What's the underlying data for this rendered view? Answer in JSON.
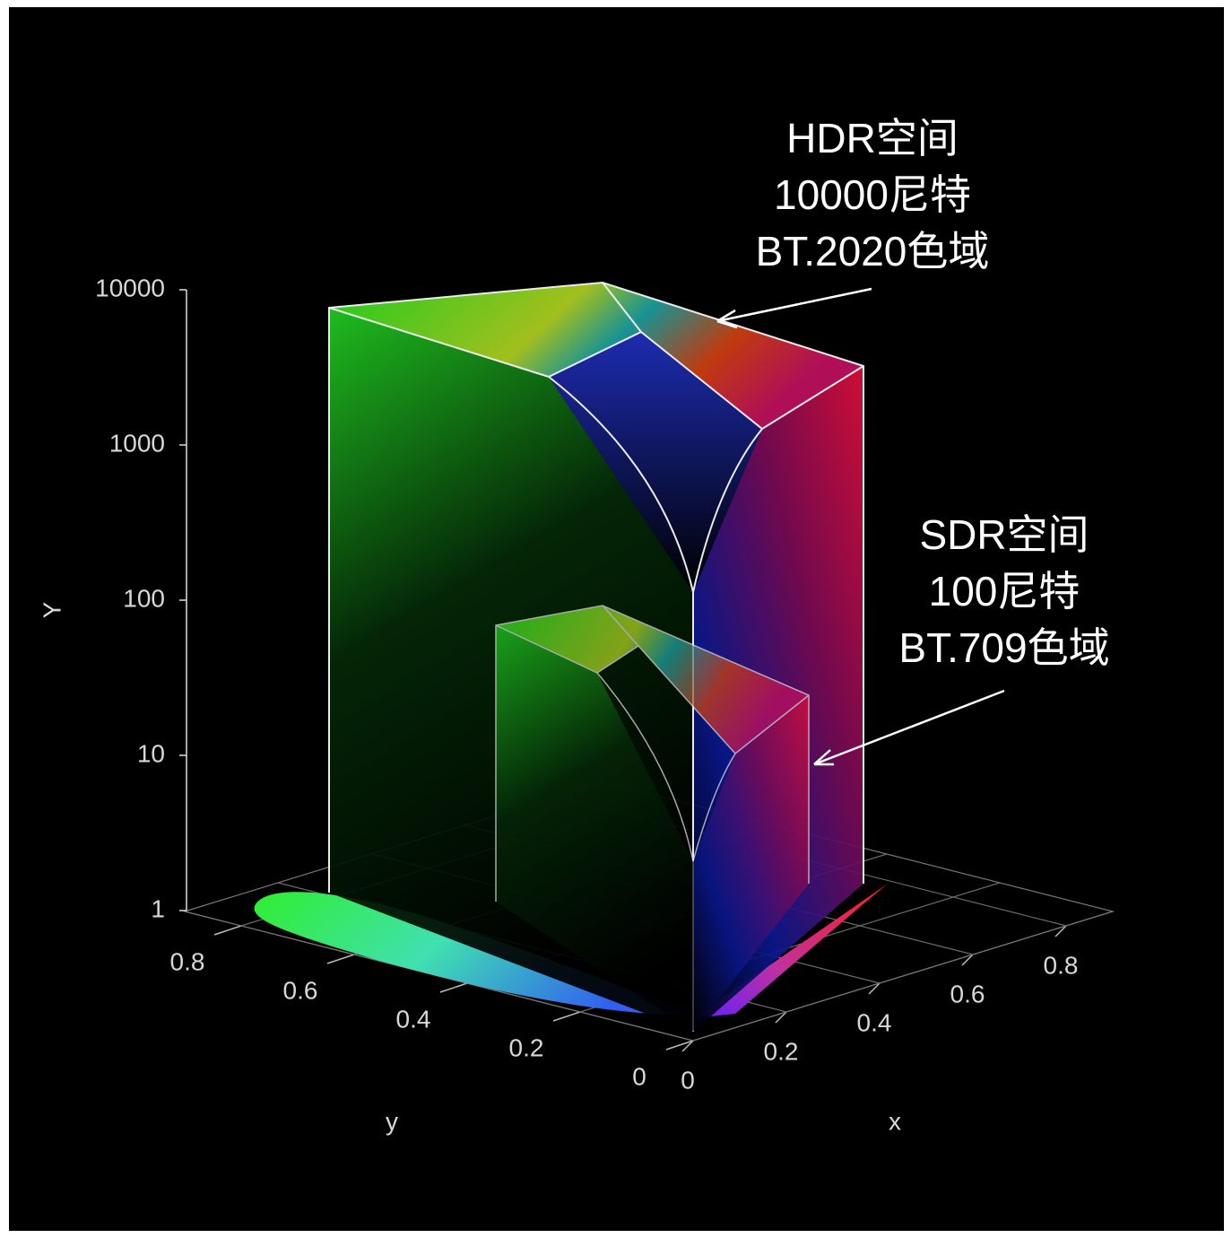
{
  "chart_data": {
    "type": "gamut-3d",
    "xlabel": "x",
    "ylabel": "y",
    "zlabel": "Y",
    "xlim": [
      0,
      0.9
    ],
    "xticks": [
      0,
      0.2,
      0.4,
      0.6,
      0.8
    ],
    "ylim": [
      0,
      0.9
    ],
    "yticks": [
      0,
      0.2,
      0.4,
      0.6,
      0.8
    ],
    "zlim": [
      1,
      10000
    ],
    "zticks": [
      1,
      10,
      100,
      1000,
      10000
    ],
    "zscale": "log",
    "grid": true,
    "annotations": [
      {
        "lines": [
          "HDR空间",
          "10000尼特",
          "BT.2020色域"
        ]
      },
      {
        "lines": [
          "SDR空间",
          "100尼特",
          "BT.709色域"
        ]
      }
    ]
  }
}
